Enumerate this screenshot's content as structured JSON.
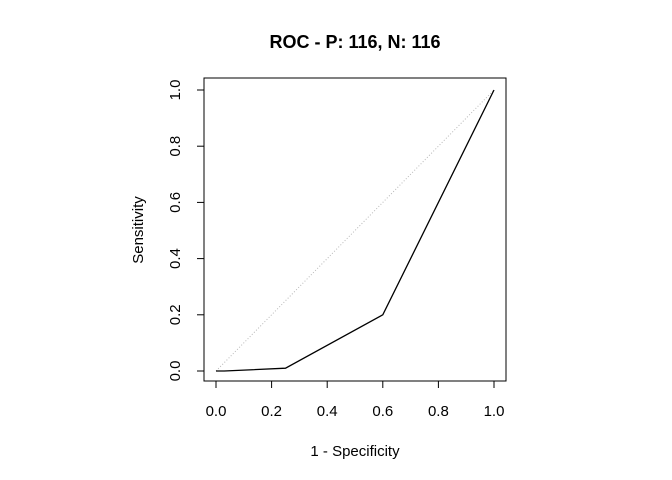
{
  "chart_data": {
    "type": "line",
    "title": "ROC - P: 116, N: 116",
    "xlabel": "1 - Specificity",
    "ylabel": "Sensitivity",
    "xlim": [
      0,
      1
    ],
    "ylim": [
      0,
      1
    ],
    "xticks": [
      "0.0",
      "0.2",
      "0.4",
      "0.6",
      "0.8",
      "1.0"
    ],
    "yticks": [
      "0.0",
      "0.2",
      "0.4",
      "0.6",
      "0.8",
      "1.0"
    ],
    "grid": false,
    "series": [
      {
        "x": [
          0.0,
          0.03,
          0.25,
          0.6,
          1.0
        ],
        "y": [
          0.0,
          0.0,
          0.01,
          0.2,
          1.0
        ],
        "style": "solid",
        "color": "#000000"
      },
      {
        "x": [
          0.0,
          1.0
        ],
        "y": [
          0.0,
          1.0
        ],
        "style": "dotted",
        "color": "#b8b8b8"
      }
    ]
  }
}
